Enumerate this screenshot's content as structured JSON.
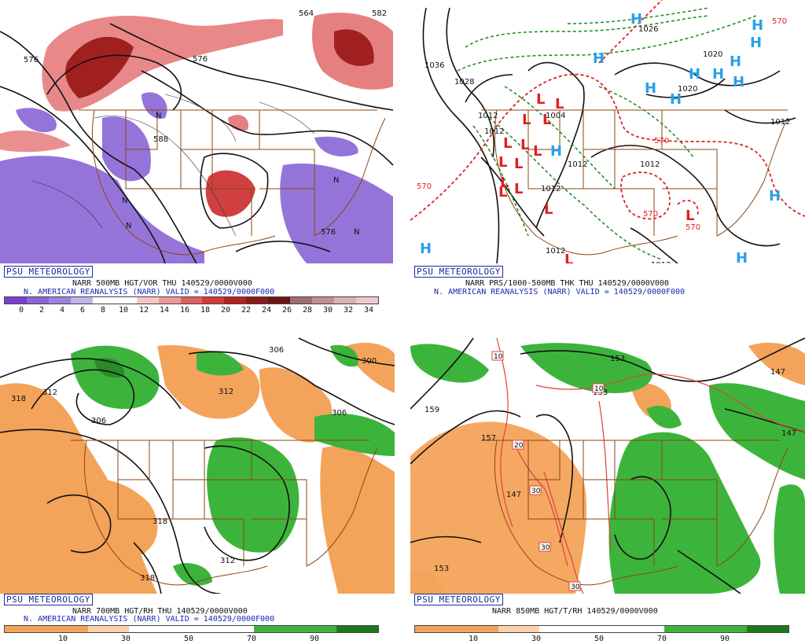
{
  "colors": {
    "border": "#8b4513",
    "vort_purple": "#8a66d6",
    "vort_red": "#e06060",
    "high_blue": "#2aa0e8",
    "low_red": "#e02020",
    "thick_green": "#1a8a1a",
    "rh_orange": "#f4a35a",
    "rh_green": "#3cb43c",
    "badge_blue": "#1a2a9a"
  },
  "panels": {
    "tl": {
      "badge": "PSU METEOROLOGY",
      "line1": "NARR 500MB HGT/VOR THU  140529/0000V000",
      "line2": "N. AMERICAN REANALYSIS (NARR) VALID = 140529/0000F000",
      "colorbar_ticks": [
        "0",
        "2",
        "4",
        "6",
        "8",
        "10",
        "12",
        "14",
        "16",
        "18",
        "20",
        "22",
        "24",
        "26",
        "28",
        "30",
        "32",
        "34"
      ],
      "contour_labels": [
        "576",
        "564",
        "582",
        "588",
        "576",
        "576"
      ],
      "n_marks": [
        "N",
        "N",
        "N",
        "N",
        "N"
      ]
    },
    "tr": {
      "badge": "PSU METEOROLOGY",
      "line1": "NARR PRS/1000-500MB THK THU  140529/0000V000",
      "line2": "N. AMERICAN REANALYSIS (NARR) VALID = 140529/0000F000",
      "highs": [
        "H",
        "H",
        "H",
        "H",
        "H",
        "H",
        "H",
        "H",
        "H",
        "H",
        "H",
        "H",
        "H",
        "H"
      ],
      "lows": [
        "L",
        "L",
        "L",
        "L",
        "L",
        "L",
        "L",
        "L",
        "L",
        "L",
        "L",
        "L",
        "L",
        "L",
        "L"
      ],
      "isobar_labels": [
        "1036",
        "1028",
        "1026",
        "1020",
        "1020",
        "1012",
        "1004",
        "1012",
        "1012",
        "1012",
        "1012",
        "1012",
        "1012",
        "1012",
        "1012"
      ],
      "thickness_labels": [
        "570",
        "570",
        "570",
        "570",
        "570"
      ]
    },
    "bl": {
      "badge": "PSU METEOROLOGY",
      "line1": "NARR 700MB HGT/RH THU  140529/0000V000",
      "line2": "N. AMERICAN REANALYSIS (NARR) VALID = 140529/0000F000",
      "colorbar_ticks": [
        "10",
        "30",
        "50",
        "70",
        "90"
      ],
      "contour_labels": [
        "318",
        "312",
        "306",
        "306",
        "300",
        "312",
        "306",
        "318",
        "318",
        "312",
        "318"
      ]
    },
    "br": {
      "badge": "PSU METEOROLOGY",
      "line1": "NARR 850MB HGT/T/RH  140529/0000V000",
      "colorbar_ticks": [
        "10",
        "30",
        "50",
        "70",
        "90"
      ],
      "height_labels": [
        "153",
        "159",
        "157",
        "147",
        "153",
        "147",
        "147",
        "153"
      ],
      "temp_labels": [
        "10",
        "10",
        "20",
        "30",
        "30",
        "30"
      ]
    }
  }
}
